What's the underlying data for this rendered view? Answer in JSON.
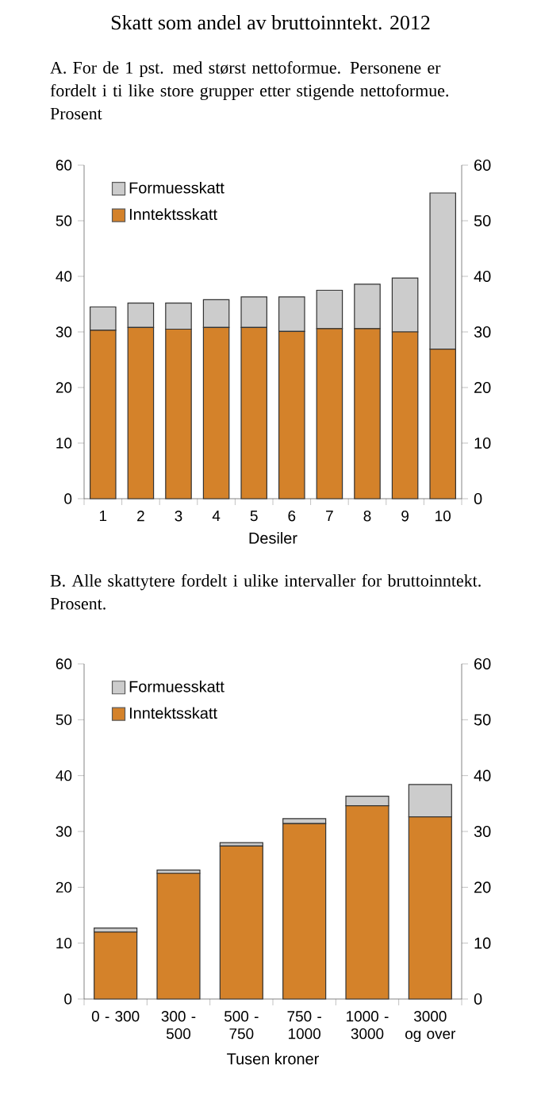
{
  "chart_data": [
    {
      "type": "bar",
      "title": "Skatt som andel av bruttoinntekt. 2012",
      "subtitle": "A.   For de 1 pst. med størst nettoformue. Personene er fordelt i ti like store grupper etter stigende nettoformue. Prosent",
      "xlabel": "Desiler",
      "categories": [
        "1",
        "2",
        "3",
        "4",
        "5",
        "6",
        "7",
        "8",
        "9",
        "10"
      ],
      "stacked": true,
      "legend": "top left",
      "ylim": [
        0,
        60
      ],
      "yticks": [
        0,
        10,
        20,
        30,
        40,
        50,
        60
      ],
      "y2lim": [
        0,
        60
      ],
      "y2ticks": [
        0,
        10,
        20,
        30,
        40,
        50,
        60
      ],
      "series": [
        {
          "name": "Inntektsskatt",
          "color": "#d4822a",
          "values": [
            30.3,
            30.8,
            30.5,
            30.8,
            30.8,
            30.1,
            30.6,
            30.6,
            30.0,
            26.9
          ]
        },
        {
          "name": "Formuesskatt",
          "color": "#cccccc",
          "values": [
            4.2,
            4.4,
            4.7,
            5.0,
            5.5,
            6.2,
            6.9,
            8.0,
            9.7,
            28.1
          ]
        }
      ]
    },
    {
      "type": "bar",
      "title": "B.   Alle skattytere fordelt i ulike intervaller for bruttoinntekt. Prosent.",
      "xlabel": "Tusen kroner",
      "categories": [
        "0 - 300",
        "300 - 500",
        "500 - 750",
        "750 - 1000",
        "1000 - 3000",
        "3000 og over"
      ],
      "stacked": true,
      "legend": "top left",
      "ylim": [
        0,
        60
      ],
      "yticks": [
        0,
        10,
        20,
        30,
        40,
        50,
        60
      ],
      "y2lim": [
        0,
        60
      ],
      "y2ticks": [
        0,
        10,
        20,
        30,
        40,
        50,
        60
      ],
      "series": [
        {
          "name": "Inntektsskatt",
          "color": "#d4822a",
          "values": [
            12.0,
            22.5,
            27.4,
            31.4,
            34.6,
            32.6
          ]
        },
        {
          "name": "Formuesskatt",
          "color": "#cccccc",
          "values": [
            0.7,
            0.6,
            0.6,
            0.9,
            1.7,
            5.8
          ]
        }
      ]
    }
  ]
}
